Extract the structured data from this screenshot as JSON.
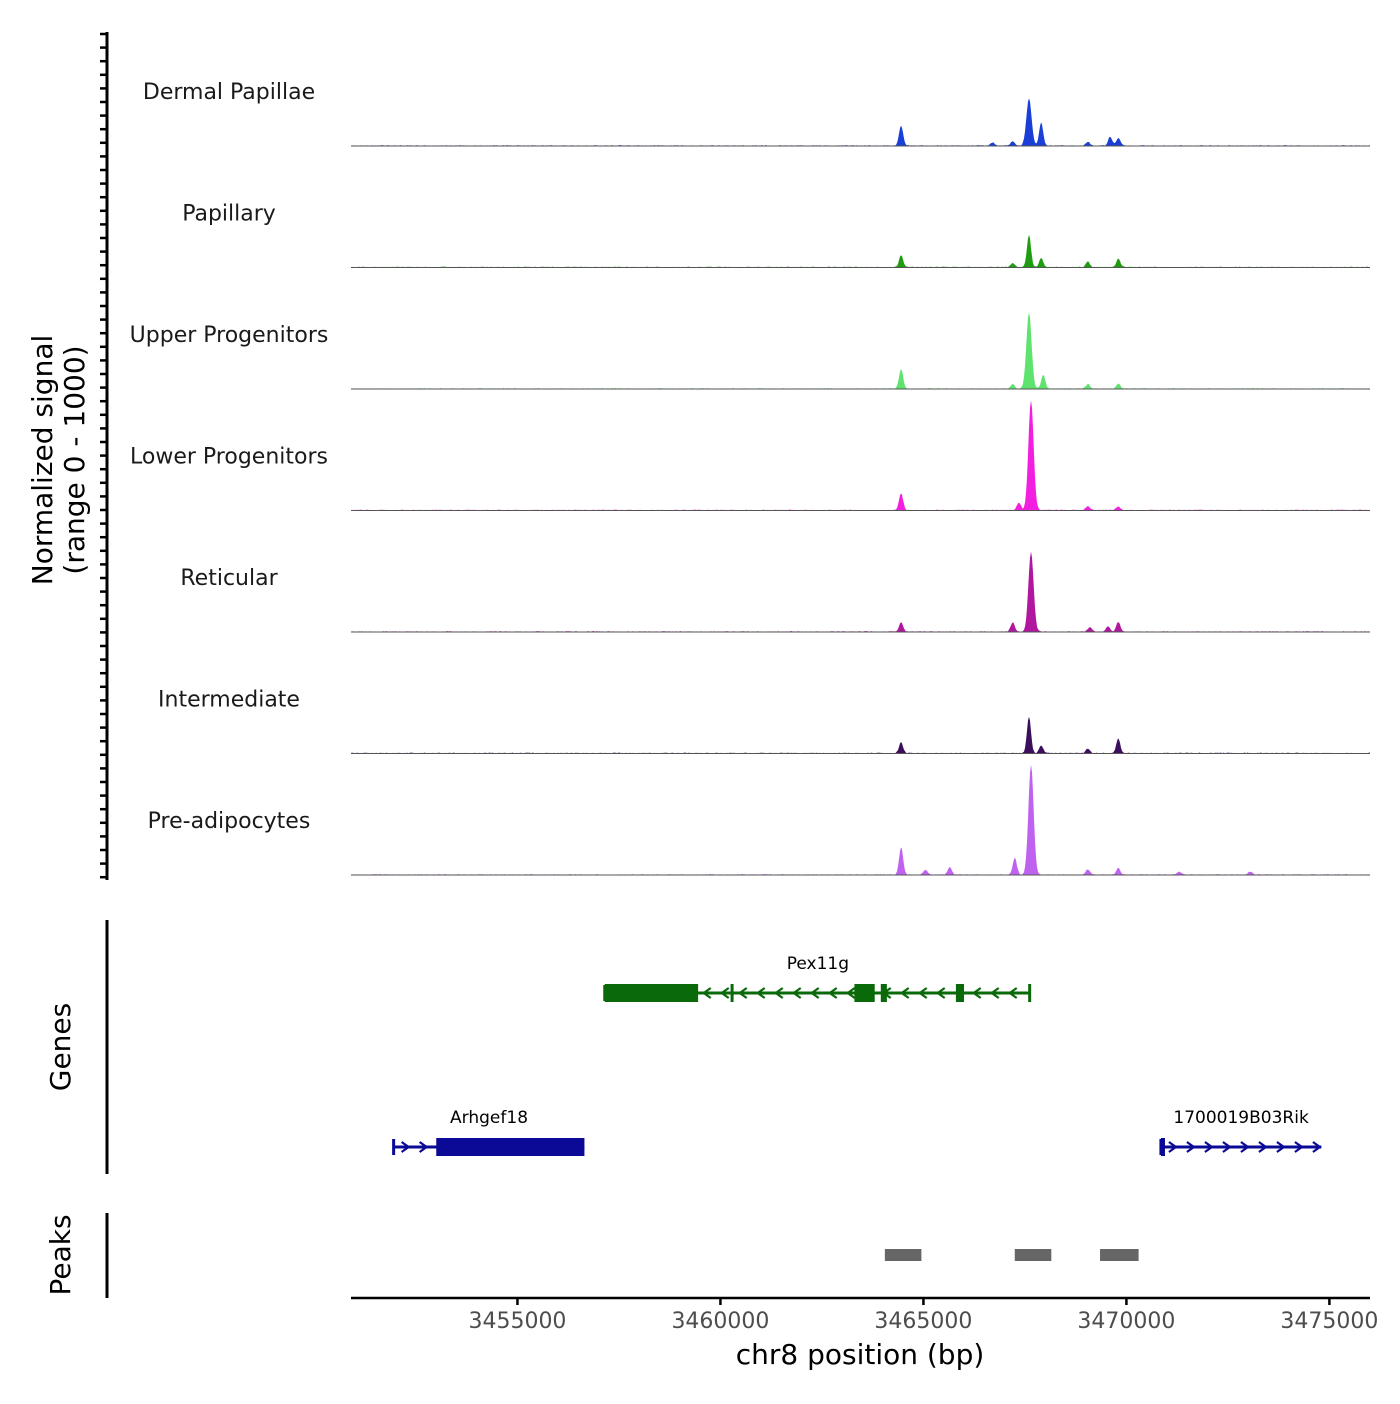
{
  "chart_data": {
    "type": "area",
    "title": "",
    "xlabel": "chr8 position (bp)",
    "ylabel_line1": "Normalized signal",
    "ylabel_line2": "(range 0 - 1000)",
    "xlim": [
      3450900,
      3476000
    ],
    "xticks": [
      3455000,
      3460000,
      3465000,
      3470000,
      3475000
    ],
    "xtick_labels": [
      "3455000",
      "3460000",
      "3465000",
      "3470000",
      "3475000"
    ],
    "ylim": [
      0,
      1000
    ],
    "tracks": [
      {
        "name": "Dermal Papillae",
        "color": "#1a3fd6",
        "peaks": [
          [
            3464450,
            0.26
          ],
          [
            3467600,
            0.62
          ],
          [
            3467900,
            0.3
          ],
          [
            3469600,
            0.12
          ],
          [
            3469800,
            0.1
          ],
          [
            3469050,
            0.05
          ],
          [
            3467200,
            0.06
          ],
          [
            3466700,
            0.04
          ]
        ]
      },
      {
        "name": "Papillary",
        "color": "#1f9c10",
        "peaks": [
          [
            3464450,
            0.16
          ],
          [
            3467600,
            0.42
          ],
          [
            3467900,
            0.12
          ],
          [
            3469050,
            0.07
          ],
          [
            3469800,
            0.11
          ],
          [
            3467200,
            0.05
          ]
        ]
      },
      {
        "name": "Upper Progenitors",
        "color": "#5ee36e",
        "peaks": [
          [
            3464450,
            0.26
          ],
          [
            3467600,
            1.0
          ],
          [
            3467950,
            0.18
          ],
          [
            3469050,
            0.06
          ],
          [
            3469800,
            0.07
          ],
          [
            3467200,
            0.06
          ]
        ]
      },
      {
        "name": "Lower Progenitors",
        "color": "#f21fe0",
        "peaks": [
          [
            3464450,
            0.22
          ],
          [
            3467650,
            1.45
          ],
          [
            3467350,
            0.1
          ],
          [
            3469050,
            0.05
          ],
          [
            3469800,
            0.05
          ]
        ]
      },
      {
        "name": "Reticular",
        "color": "#b0179e",
        "peaks": [
          [
            3464450,
            0.12
          ],
          [
            3467650,
            1.05
          ],
          [
            3467200,
            0.12
          ],
          [
            3469100,
            0.06
          ],
          [
            3469800,
            0.13
          ],
          [
            3469550,
            0.07
          ]
        ]
      },
      {
        "name": "Intermediate",
        "color": "#3c0f5e",
        "peaks": [
          [
            3464450,
            0.14
          ],
          [
            3467600,
            0.48
          ],
          [
            3467900,
            0.1
          ],
          [
            3469050,
            0.06
          ],
          [
            3469800,
            0.19
          ]
        ]
      },
      {
        "name": "Pre-adipocytes",
        "color": "#c062f0",
        "peaks": [
          [
            3464450,
            0.36
          ],
          [
            3467650,
            1.45
          ],
          [
            3467250,
            0.22
          ],
          [
            3465650,
            0.1
          ],
          [
            3465050,
            0.06
          ],
          [
            3469050,
            0.07
          ],
          [
            3469800,
            0.09
          ],
          [
            3471300,
            0.04
          ],
          [
            3473050,
            0.04
          ]
        ]
      }
    ],
    "genes_panel_label": "Genes",
    "genes": [
      {
        "name": "Pex11g",
        "strand": "-",
        "color": "#0a6a0a",
        "start": 3457150,
        "end": 3467650,
        "exons": [
          [
            3457150,
            3459450
          ],
          [
            3460250,
            3460320
          ],
          [
            3463300,
            3463800
          ],
          [
            3463950,
            3464100
          ],
          [
            3465800,
            3466000
          ],
          [
            3467580,
            3467650
          ]
        ]
      },
      {
        "name": "Arhgef18",
        "strand": "+",
        "color": "#0a0a96",
        "start": 3451950,
        "end": 3456650,
        "exons": [
          [
            3453000,
            3456650
          ]
        ]
      },
      {
        "name": "1700019B03Rik",
        "strand": "+",
        "color": "#0a0a96",
        "start": 3470850,
        "end": 3474800,
        "exons": [
          [
            3470850,
            3470950
          ]
        ]
      }
    ],
    "peaks_panel_label": "Peaks",
    "peak_regions": [
      [
        3464050,
        3464950
      ],
      [
        3467250,
        3468150
      ],
      [
        3469350,
        3470300
      ]
    ],
    "peak_color": "#666666"
  }
}
